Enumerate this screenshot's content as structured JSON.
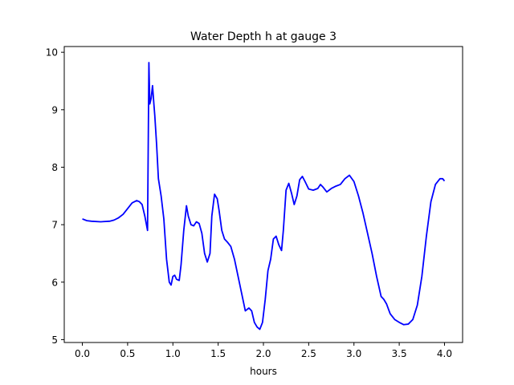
{
  "chart_data": {
    "type": "line",
    "title": "Water Depth h at gauge 3",
    "xlabel": "hours",
    "ylabel": "",
    "xlim": [
      -0.2,
      4.2
    ],
    "ylim": [
      4.95,
      10.1
    ],
    "xticks": [
      0.0,
      0.5,
      1.0,
      1.5,
      2.0,
      2.5,
      3.0,
      3.5,
      4.0
    ],
    "xtick_labels": [
      "0.0",
      "0.5",
      "1.0",
      "1.5",
      "2.0",
      "2.5",
      "3.0",
      "3.5",
      "4.0"
    ],
    "yticks": [
      5,
      6,
      7,
      8,
      9,
      10
    ],
    "ytick_labels": [
      "5",
      "6",
      "7",
      "8",
      "9",
      "10"
    ],
    "grid": false,
    "series": [
      {
        "color": "#0000ff",
        "x": [
          0.0,
          0.05,
          0.1,
          0.2,
          0.3,
          0.35,
          0.4,
          0.45,
          0.5,
          0.55,
          0.6,
          0.63,
          0.66,
          0.69,
          0.72,
          0.735,
          0.745,
          0.76,
          0.775,
          0.79,
          0.8,
          0.82,
          0.84,
          0.87,
          0.9,
          0.93,
          0.96,
          0.98,
          1.0,
          1.02,
          1.04,
          1.07,
          1.09,
          1.12,
          1.15,
          1.17,
          1.2,
          1.23,
          1.26,
          1.29,
          1.32,
          1.35,
          1.38,
          1.41,
          1.43,
          1.46,
          1.49,
          1.51,
          1.54,
          1.57,
          1.6,
          1.64,
          1.68,
          1.72,
          1.76,
          1.8,
          1.84,
          1.87,
          1.9,
          1.93,
          1.96,
          1.99,
          2.02,
          2.05,
          2.08,
          2.11,
          2.14,
          2.17,
          2.2,
          2.22,
          2.25,
          2.28,
          2.31,
          2.34,
          2.37,
          2.4,
          2.43,
          2.46,
          2.5,
          2.55,
          2.6,
          2.63,
          2.66,
          2.7,
          2.75,
          2.8,
          2.85,
          2.9,
          2.95,
          3.0,
          3.05,
          3.1,
          3.15,
          3.2,
          3.25,
          3.3,
          3.33,
          3.36,
          3.4,
          3.45,
          3.5,
          3.55,
          3.6,
          3.65,
          3.7,
          3.75,
          3.8,
          3.85,
          3.9,
          3.95,
          3.98,
          4.0
        ],
        "y": [
          7.1,
          7.07,
          7.06,
          7.05,
          7.06,
          7.08,
          7.12,
          7.18,
          7.28,
          7.38,
          7.42,
          7.4,
          7.35,
          7.15,
          6.9,
          9.82,
          9.1,
          9.2,
          9.42,
          9.1,
          8.9,
          8.4,
          7.8,
          7.5,
          7.1,
          6.4,
          6.0,
          5.95,
          6.1,
          6.12,
          6.05,
          6.03,
          6.3,
          6.9,
          7.33,
          7.15,
          7.0,
          6.98,
          7.05,
          7.02,
          6.85,
          6.5,
          6.35,
          6.5,
          7.15,
          7.53,
          7.45,
          7.25,
          6.9,
          6.75,
          6.7,
          6.62,
          6.4,
          6.1,
          5.8,
          5.5,
          5.55,
          5.5,
          5.3,
          5.22,
          5.18,
          5.3,
          5.7,
          6.2,
          6.4,
          6.75,
          6.8,
          6.65,
          6.55,
          6.9,
          7.6,
          7.72,
          7.55,
          7.35,
          7.5,
          7.78,
          7.84,
          7.75,
          7.62,
          7.6,
          7.63,
          7.7,
          7.65,
          7.57,
          7.63,
          7.67,
          7.7,
          7.8,
          7.86,
          7.75,
          7.5,
          7.2,
          6.85,
          6.5,
          6.1,
          5.75,
          5.7,
          5.62,
          5.45,
          5.35,
          5.3,
          5.26,
          5.27,
          5.35,
          5.6,
          6.1,
          6.8,
          7.4,
          7.7,
          7.8,
          7.8,
          7.76
        ]
      }
    ]
  }
}
